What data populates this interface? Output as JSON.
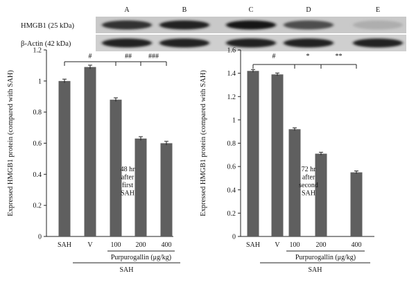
{
  "blot": {
    "lane_labels": [
      "A",
      "B",
      "C",
      "D",
      "E"
    ],
    "rows": [
      {
        "label": "HMGB1 (25 kDa)",
        "intensities": [
          0.85,
          0.95,
          1.0,
          0.7,
          0.15
        ]
      },
      {
        "label": "β-Actin (42 kDa)",
        "intensities": [
          0.95,
          0.95,
          0.95,
          0.95,
          0.95
        ]
      }
    ]
  },
  "chart_data": [
    {
      "type": "bar",
      "categories": [
        "SAH",
        "V",
        "100",
        "200",
        "400"
      ],
      "values": [
        1.0,
        1.09,
        0.88,
        0.63,
        0.6
      ],
      "errors": [
        0.012,
        0.012,
        0.012,
        0.012,
        0.012
      ],
      "ylim": [
        0,
        1.2
      ],
      "yticks": [
        "0",
        "0.2",
        "0.4",
        "0.6",
        "0.8",
        "1",
        "1.2"
      ],
      "ylabel": "Expressed HMGB1 protein (compared with SAH)",
      "group_label": "Purpurogallin (μg/kg)",
      "outer_label": "SAH",
      "annotation": [
        "48 hr",
        "after",
        "first",
        "SAH"
      ],
      "significance": [
        {
          "from": 0,
          "to": 2,
          "label": "#"
        },
        {
          "from": 2,
          "to": 3,
          "label": "##"
        },
        {
          "from": 3,
          "to": 4,
          "label": "###"
        }
      ],
      "bar_color": "#5f5f5f"
    },
    {
      "type": "bar",
      "categories": [
        "SAH",
        "V",
        "100",
        "200",
        "400"
      ],
      "values": [
        1.42,
        1.39,
        0.92,
        0.71,
        0.55
      ],
      "errors": [
        0.012,
        0.012,
        0.012,
        0.012,
        0.012
      ],
      "ylim": [
        0,
        1.6
      ],
      "yticks": [
        "0",
        "0.2",
        "0.4",
        "0.6",
        "0.8",
        "1",
        "1.2",
        "1.4",
        "1.6"
      ],
      "ylabel": "Expressed HMGB1 protein (compared with SAH)",
      "group_label": "Purpurogallin (μg/kg)",
      "outer_label": "SAH",
      "annotation": [
        "72 hr",
        "after",
        "second",
        "SAH"
      ],
      "significance": [
        {
          "from": 0,
          "to": 2,
          "label": "#"
        },
        {
          "from": 2,
          "to": 3,
          "label": "*"
        },
        {
          "from": 3,
          "to": 4,
          "label": "**"
        }
      ],
      "bar_color": "#5f5f5f"
    }
  ]
}
